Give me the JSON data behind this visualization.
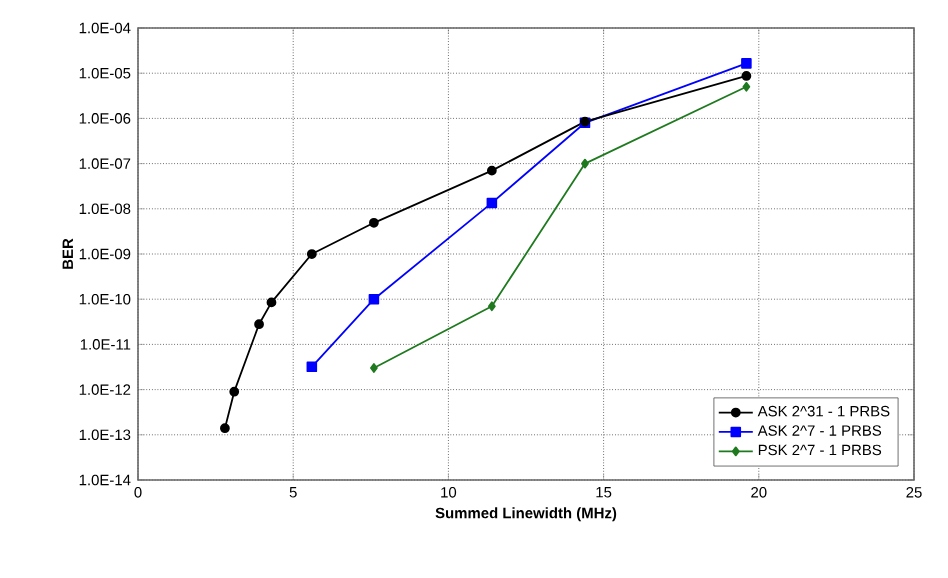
{
  "chart_data": {
    "type": "line",
    "xlabel": "Summed Linewidth (MHz)",
    "ylabel": "BER",
    "xlim": [
      0,
      25
    ],
    "xticks": [
      0,
      5,
      10,
      15,
      20,
      25
    ],
    "ylim": [
      1e-14,
      0.0001
    ],
    "log": "y",
    "yticks": [
      {
        "value": 1e-14,
        "label": "1.0E-14"
      },
      {
        "value": 1e-13,
        "label": "1.0E-13"
      },
      {
        "value": 1e-12,
        "label": "1.0E-12"
      },
      {
        "value": 1e-11,
        "label": "1.0E-11"
      },
      {
        "value": 1e-10,
        "label": "1.0E-10"
      },
      {
        "value": 1e-09,
        "label": "1.0E-09"
      },
      {
        "value": 1e-08,
        "label": "1.0E-08"
      },
      {
        "value": 1e-07,
        "label": "1.0E-07"
      },
      {
        "value": 1e-06,
        "label": "1.0E-06"
      },
      {
        "value": 1e-05,
        "label": "1.0E-05"
      },
      {
        "value": 0.0001,
        "label": "1.0E-04"
      }
    ],
    "grid": true,
    "legend": "bottom right",
    "line_style": "solid",
    "series": [
      {
        "name": "ASK 2^31 - 1 PRBS",
        "color": "#000000",
        "marker": "circle",
        "x": [
          2.8,
          3.1,
          3.9,
          4.3,
          5.6,
          7.6,
          11.4,
          14.4,
          19.6
        ],
        "values": [
          1.4e-13,
          9e-13,
          2.8e-11,
          8.5e-11,
          1e-09,
          4.9e-09,
          7e-08,
          8.5e-07,
          8.7e-06
        ]
      },
      {
        "name": "ASK 2^7 - 1 PRBS",
        "color": "#0000ff",
        "marker": "square",
        "x": [
          5.6,
          7.6,
          11.4,
          14.4,
          19.6
        ],
        "values": [
          3.2e-12,
          1e-10,
          1.35e-08,
          8e-07,
          1.65e-05
        ]
      },
      {
        "name": "PSK 2^7 - 1 PRBS",
        "color": "#1f7a1f",
        "marker": "diamond",
        "x": [
          7.6,
          11.4,
          14.4,
          19.6
        ],
        "values": [
          3e-12,
          7e-11,
          1e-07,
          5e-06
        ]
      }
    ]
  }
}
